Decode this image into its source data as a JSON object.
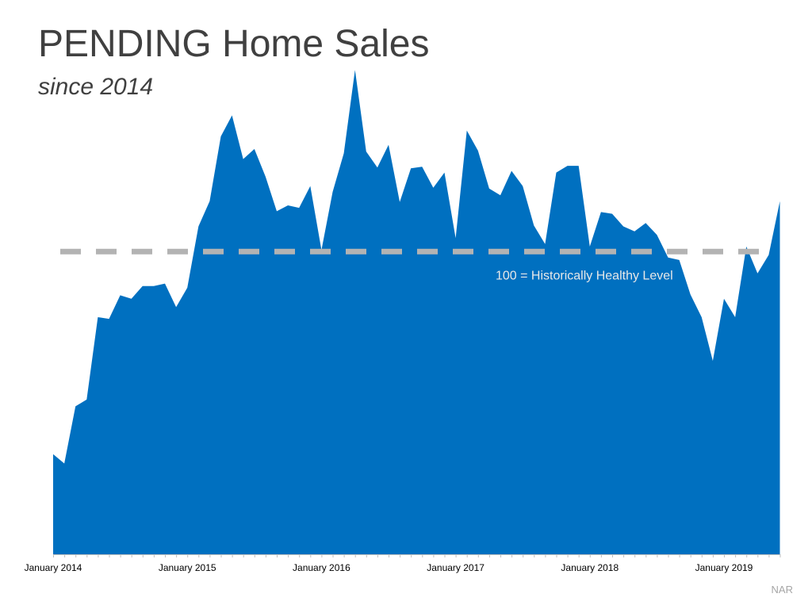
{
  "title": "PENDING Home Sales",
  "subtitle": "since 2014",
  "source": "NAR",
  "colors": {
    "area": "#0070C0",
    "reference_line": "#B3B3B3",
    "reference_label": "#E8E8E8",
    "title": "#404040"
  },
  "chart_data": {
    "type": "area",
    "title": "PENDING Home Sales",
    "subtitle": "since 2014",
    "xlabel": "",
    "ylabel": "",
    "x_start": "January 2014",
    "x_step": "month",
    "x_tick_labels": [
      "January 2014",
      "January 2015",
      "January 2016",
      "January 2017",
      "January 2018",
      "January 2019"
    ],
    "y_axis_visible": false,
    "ylim": [
      64,
      122
    ],
    "reference_line": {
      "value": 100,
      "label": "100 = Historically Healthy Level",
      "style": "dashed"
    },
    "series": [
      {
        "values": [
          75.9,
          74.8,
          81.6,
          82.4,
          92.2,
          92.0,
          94.8,
          94.4,
          95.9,
          95.9,
          96.2,
          93.4,
          95.7,
          103.0,
          106.0,
          113.7,
          116.2,
          111.0,
          112.2,
          108.9,
          104.8,
          105.5,
          105.2,
          107.8,
          100.2,
          107.1,
          111.7,
          121.6,
          111.9,
          110.0,
          112.7,
          105.9,
          109.9,
          110.1,
          107.6,
          109.4,
          101.6,
          114.4,
          112.0,
          107.5,
          106.7,
          109.6,
          107.8,
          103.1,
          100.9,
          109.4,
          110.2,
          110.2,
          100.6,
          104.7,
          104.5,
          103.0,
          102.4,
          103.4,
          102.0,
          99.3,
          99.0,
          94.9,
          92.2,
          87.0,
          94.4,
          92.2,
          100.6,
          97.4,
          99.6,
          106.0
        ]
      }
    ]
  }
}
